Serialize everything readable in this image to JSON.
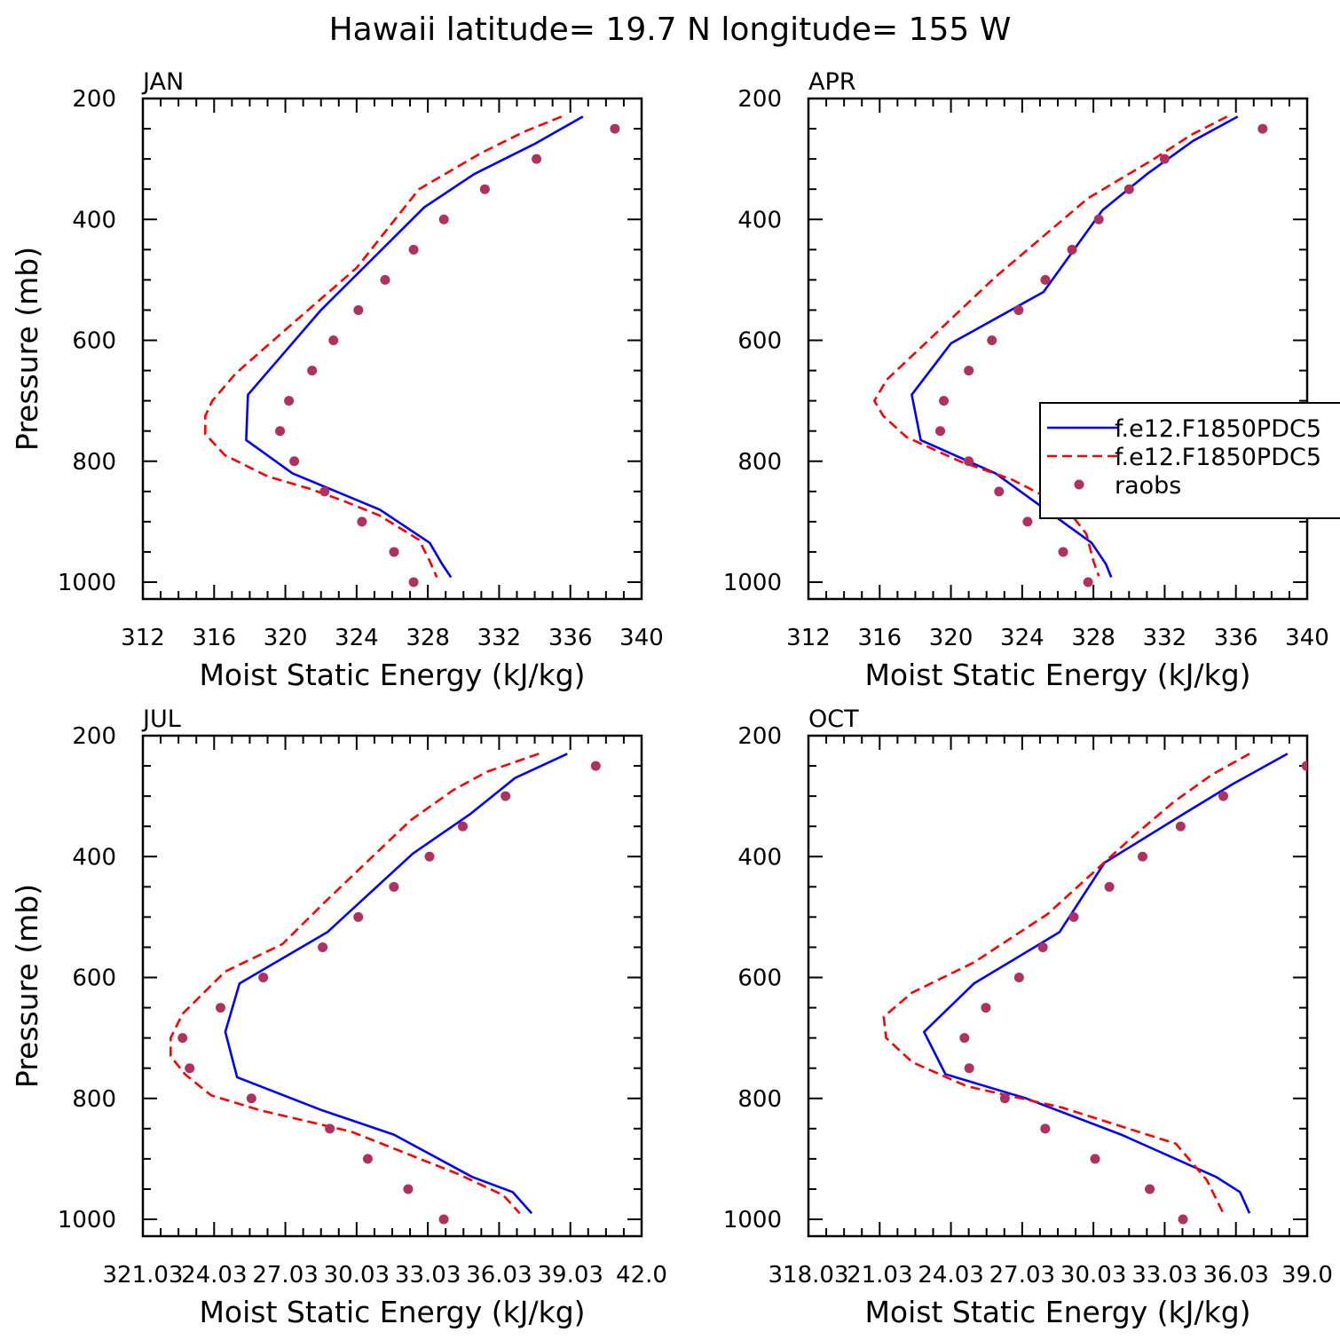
{
  "figure_title": "Hawaii  latitude= 19.7 N longitude= 155 W",
  "colors": {
    "series_a": "#0000ff",
    "series_b": "#ff0000",
    "raobs": "#b03060"
  },
  "chart_data": [
    {
      "type": "line",
      "title": "JAN",
      "xlabel": "Moist Static Energy (kJ/kg)",
      "ylabel": "Pressure (mb)",
      "xlim": [
        312,
        340
      ],
      "ylim": [
        1000,
        200
      ],
      "x_ticks": [
        "312",
        "316",
        "320",
        "324",
        "328",
        "332",
        "336",
        "340"
      ],
      "y_ticks": [
        "200",
        "400",
        "600",
        "800",
        "1000"
      ],
      "series": [
        {
          "style": "solid",
          "x": [
            336.7,
            334.0,
            330.6,
            327.8,
            322.0,
            317.9,
            317.8,
            320.4,
            325.3,
            328.1,
            328.8,
            329.3
          ],
          "y": [
            230,
            275,
            325,
            380,
            550,
            690,
            765,
            820,
            880,
            935,
            970,
            992
          ]
        },
        {
          "style": "dashed",
          "x": [
            335.5,
            333.4,
            331.0,
            327.5,
            324.0,
            320.1,
            317.2,
            315.9,
            315.5,
            315.5,
            316.6,
            319.0,
            321.3,
            323.2,
            325.3,
            327.5,
            328.1,
            328.5
          ],
          "y": [
            230,
            255,
            290,
            350,
            480,
            580,
            655,
            700,
            725,
            755,
            790,
            825,
            845,
            865,
            890,
            930,
            965,
            992
          ]
        },
        {
          "style": "dots",
          "x": [
            338.5,
            334.1,
            331.2,
            328.9,
            327.2,
            325.6,
            324.1,
            322.7,
            321.5,
            320.2,
            319.7,
            320.5,
            322.2,
            324.3,
            326.1,
            327.2
          ],
          "y": [
            250,
            300,
            350,
            400,
            450,
            500,
            550,
            600,
            650,
            700,
            750,
            800,
            850,
            900,
            950,
            1000
          ]
        }
      ]
    },
    {
      "type": "line",
      "title": "APR",
      "xlabel": "Moist Static Energy (kJ/kg)",
      "ylabel": "",
      "xlim": [
        312,
        340
      ],
      "ylim": [
        1000,
        200
      ],
      "x_ticks": [
        "312",
        "316",
        "320",
        "324",
        "328",
        "332",
        "336",
        "340"
      ],
      "y_ticks": [
        "200",
        "400",
        "600",
        "800",
        "1000"
      ],
      "legend": {
        "position": "right",
        "entries": [
          "f.e12.F1850PDC5",
          "f.e12.F1850PDC5",
          "raobs"
        ]
      },
      "series": [
        {
          "style": "solid",
          "x": [
            336.1,
            333.6,
            331.0,
            328.5,
            325.2,
            320.0,
            317.8,
            318.3,
            322.5,
            327.9,
            328.7,
            329.0
          ],
          "y": [
            230,
            270,
            325,
            385,
            520,
            605,
            690,
            765,
            820,
            935,
            970,
            992
          ]
        },
        {
          "style": "dashed",
          "x": [
            335.5,
            333.5,
            331.4,
            327.7,
            322.5,
            319.1,
            316.4,
            315.7,
            316.2,
            317.5,
            320.5,
            323.4,
            326.4,
            327.6,
            328.0,
            328.3
          ],
          "y": [
            230,
            260,
            300,
            365,
            495,
            590,
            665,
            700,
            725,
            760,
            800,
            830,
            875,
            920,
            965,
            990
          ]
        },
        {
          "style": "dots",
          "x": [
            337.5,
            332.0,
            330.0,
            328.3,
            326.8,
            325.3,
            323.8,
            322.3,
            321.0,
            319.6,
            319.4,
            321.0,
            322.7,
            324.3,
            326.3,
            327.7
          ],
          "y": [
            250,
            300,
            350,
            400,
            450,
            500,
            550,
            600,
            650,
            700,
            750,
            800,
            850,
            900,
            950,
            1000
          ]
        }
      ]
    },
    {
      "type": "line",
      "title": "JUL",
      "xlabel": "Moist Static Energy (kJ/kg)",
      "ylabel": "Pressure (mb)",
      "xlim": [
        321.03,
        342.03
      ],
      "ylim": [
        1000,
        200
      ],
      "x_ticks": [
        "321.03",
        "24.03",
        "27.03",
        "30.03",
        "33.03",
        "36.03",
        "39.03",
        "42.0"
      ],
      "y_ticks": [
        "200",
        "400",
        "600",
        "800",
        "1000"
      ],
      "series": [
        {
          "style": "solid",
          "x": [
            338.9,
            336.7,
            334.8,
            332.4,
            328.8,
            325.1,
            324.5,
            325.0,
            328.6,
            331.6,
            334.9,
            336.6,
            337.4
          ],
          "y": [
            230,
            270,
            330,
            395,
            525,
            610,
            690,
            765,
            820,
            860,
            930,
            955,
            990
          ]
        },
        {
          "style": "dashed",
          "x": [
            337.7,
            335.5,
            334.1,
            332.3,
            328.7,
            326.9,
            324.5,
            323.6,
            322.7,
            322.2,
            322.2,
            322.8,
            323.9,
            326.0,
            329.8,
            334.3,
            336.2,
            336.9
          ],
          "y": [
            230,
            260,
            290,
            340,
            475,
            545,
            590,
            625,
            660,
            700,
            730,
            760,
            795,
            820,
            855,
            925,
            960,
            990
          ]
        },
        {
          "style": "dots",
          "x": [
            340.1,
            336.3,
            334.5,
            333.1,
            331.6,
            330.1,
            328.6,
            326.1,
            324.3,
            322.7,
            323.0,
            325.6,
            328.9,
            330.5,
            332.2,
            333.7
          ],
          "y": [
            250,
            300,
            350,
            400,
            450,
            500,
            550,
            600,
            650,
            700,
            750,
            800,
            850,
            900,
            950,
            1000
          ]
        }
      ]
    },
    {
      "type": "line",
      "title": "OCT",
      "xlabel": "Moist Static Energy (kJ/kg)",
      "ylabel": "",
      "xlim": [
        318.03,
        339.03
      ],
      "ylim": [
        1000,
        200
      ],
      "x_ticks": [
        "318.03",
        "21.03",
        "24.03",
        "27.03",
        "30.03",
        "33.03",
        "36.03",
        "39.0"
      ],
      "y_ticks": [
        "200",
        "400",
        "600",
        "800",
        "1000"
      ],
      "series": [
        {
          "style": "solid",
          "x": [
            338.2,
            335.9,
            333.8,
            330.5,
            328.6,
            325.0,
            322.9,
            323.8,
            327.2,
            331.2,
            335.2,
            336.2,
            336.6
          ],
          "y": [
            230,
            280,
            330,
            410,
            525,
            610,
            690,
            760,
            800,
            860,
            930,
            955,
            990
          ]
        },
        {
          "style": "dashed",
          "x": [
            336.6,
            335.0,
            333.4,
            331.6,
            328.1,
            325.0,
            322.4,
            321.2,
            321.3,
            322.4,
            324.7,
            328.7,
            333.5,
            334.8,
            335.5
          ],
          "y": [
            230,
            265,
            310,
            370,
            495,
            575,
            625,
            665,
            700,
            740,
            780,
            815,
            875,
            935,
            990
          ]
        },
        {
          "style": "dots",
          "x": [
            339.0,
            335.5,
            333.7,
            332.1,
            330.7,
            329.2,
            327.9,
            326.9,
            325.5,
            324.6,
            324.8,
            326.3,
            328.0,
            330.1,
            332.4,
            333.8
          ],
          "y": [
            250,
            300,
            350,
            400,
            450,
            500,
            550,
            600,
            650,
            700,
            750,
            800,
            850,
            900,
            950,
            1000
          ]
        }
      ]
    }
  ]
}
